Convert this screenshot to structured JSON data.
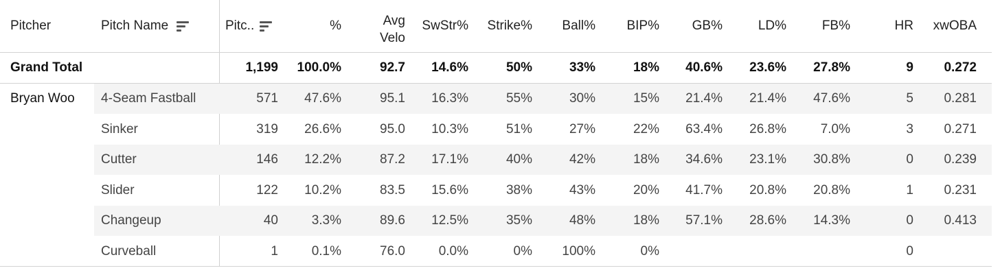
{
  "columns": {
    "pitcher": "Pitcher",
    "pitch_name": "Pitch Name",
    "count": "Pitc..",
    "pct": "%",
    "velo": "Avg\nVelo",
    "swstr": "SwStr%",
    "strike": "Strike%",
    "ball": "Ball%",
    "bip": "BIP%",
    "gb": "GB%",
    "ld": "LD%",
    "fb": "FB%",
    "hr": "HR",
    "xwoba": "xwOBA"
  },
  "grand_total": {
    "label": "Grand Total",
    "count": "1,199",
    "pct": "100.0%",
    "velo": "92.7",
    "swstr": "14.6%",
    "strike": "50%",
    "ball": "33%",
    "bip": "18%",
    "gb": "40.6%",
    "ld": "23.6%",
    "fb": "27.8%",
    "hr": "9",
    "xwoba": "0.272"
  },
  "pitcher_name": "Bryan Woo",
  "rows": [
    {
      "pitch": "4-Seam Fastball",
      "count": "571",
      "pct": "47.6%",
      "velo": "95.1",
      "swstr": "16.3%",
      "strike": "55%",
      "ball": "30%",
      "bip": "15%",
      "gb": "21.4%",
      "ld": "21.4%",
      "fb": "47.6%",
      "hr": "5",
      "xwoba": "0.281"
    },
    {
      "pitch": "Sinker",
      "count": "319",
      "pct": "26.6%",
      "velo": "95.0",
      "swstr": "10.3%",
      "strike": "51%",
      "ball": "27%",
      "bip": "22%",
      "gb": "63.4%",
      "ld": "26.8%",
      "fb": "7.0%",
      "hr": "3",
      "xwoba": "0.271"
    },
    {
      "pitch": "Cutter",
      "count": "146",
      "pct": "12.2%",
      "velo": "87.2",
      "swstr": "17.1%",
      "strike": "40%",
      "ball": "42%",
      "bip": "18%",
      "gb": "34.6%",
      "ld": "23.1%",
      "fb": "30.8%",
      "hr": "0",
      "xwoba": "0.239"
    },
    {
      "pitch": "Slider",
      "count": "122",
      "pct": "10.2%",
      "velo": "83.5",
      "swstr": "15.6%",
      "strike": "38%",
      "ball": "43%",
      "bip": "20%",
      "gb": "41.7%",
      "ld": "20.8%",
      "fb": "20.8%",
      "hr": "1",
      "xwoba": "0.231"
    },
    {
      "pitch": "Changeup",
      "count": "40",
      "pct": "3.3%",
      "velo": "89.6",
      "swstr": "12.5%",
      "strike": "35%",
      "ball": "48%",
      "bip": "18%",
      "gb": "57.1%",
      "ld": "28.6%",
      "fb": "14.3%",
      "hr": "0",
      "xwoba": "0.413"
    },
    {
      "pitch": "Curveball",
      "count": "1",
      "pct": "0.1%",
      "velo": "76.0",
      "swstr": "0.0%",
      "strike": "0%",
      "ball": "100%",
      "bip": "0%",
      "gb": "",
      "ld": "",
      "fb": "",
      "hr": "0",
      "xwoba": ""
    }
  ],
  "icons": {
    "sort_pitch_name": "sort-descending-icon",
    "sort_count": "sort-descending-icon"
  },
  "colors": {
    "row_shade": "#f4f4f4",
    "grid_line": "#d3d3d3"
  }
}
